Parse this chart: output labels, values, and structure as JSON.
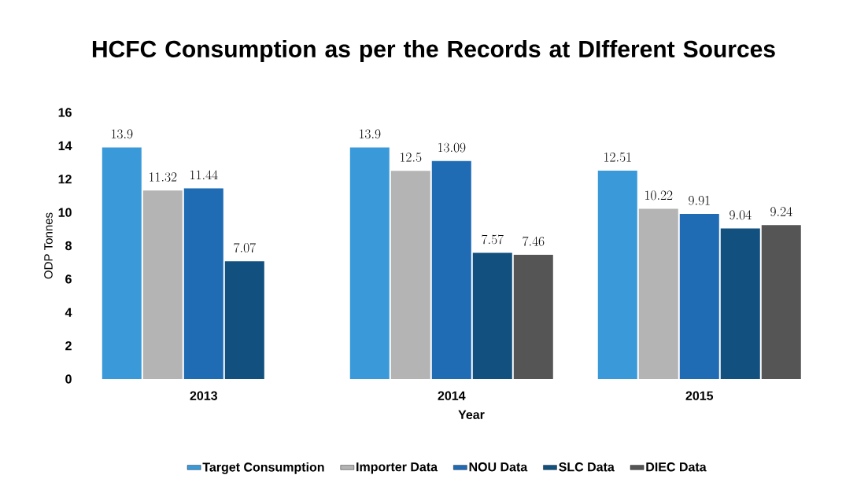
{
  "chart_data": {
    "type": "bar",
    "title": "HCFC Consumption as per the Records at DIfferent Sources",
    "xlabel": "Year",
    "ylabel": "ODP Tonnes",
    "categories": [
      "2013",
      "2014",
      "2015"
    ],
    "series": [
      {
        "name": "Target Consumption",
        "color": "#3a9ad9",
        "values": [
          13.9,
          13.9,
          12.51
        ]
      },
      {
        "name": "Importer Data",
        "color": "#b4b4b4",
        "values": [
          11.32,
          12.5,
          10.22
        ]
      },
      {
        "name": "NOU Data",
        "color": "#1f6cb5",
        "values": [
          11.44,
          13.09,
          9.91
        ]
      },
      {
        "name": "SLC Data",
        "color": "#11507f",
        "values": [
          7.07,
          7.57,
          9.04
        ]
      },
      {
        "name": "DIEC Data",
        "color": "#555555",
        "values": [
          null,
          7.46,
          9.24
        ]
      }
    ],
    "ylim": [
      0,
      16
    ],
    "yticks": [
      0,
      2,
      4,
      6,
      8,
      10,
      12,
      14,
      16
    ],
    "data_labels": true,
    "legend": "bottom"
  }
}
